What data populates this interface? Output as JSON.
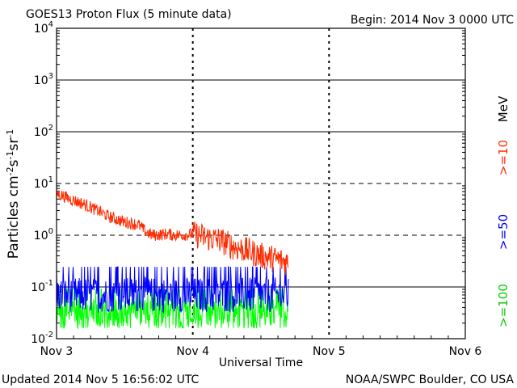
{
  "header": {
    "title": "GOES13 Proton Flux (5 minute data)",
    "begin": "Begin: 2014 Nov 3 0000 UTC"
  },
  "footer": {
    "updated": "Updated 2014 Nov  5 16:56:02 UTC",
    "credit": "NOAA/SWPC Boulder, CO USA"
  },
  "chart_data": {
    "type": "line",
    "title": "GOES13 Proton Flux (5 minute data)",
    "xlabel": "Universal Time",
    "ylabel": "Particles cm-2s-1sr-1",
    "yscale": "log",
    "ylim": [
      0.01,
      10000
    ],
    "y_ticks": [
      {
        "base": "10",
        "exp": "-2"
      },
      {
        "base": "10",
        "exp": "-1"
      },
      {
        "base": "10",
        "exp": "0"
      },
      {
        "base": "10",
        "exp": "1"
      },
      {
        "base": "10",
        "exp": "2"
      },
      {
        "base": "10",
        "exp": "3"
      },
      {
        "base": "10",
        "exp": "4"
      }
    ],
    "x_tick_labels": [
      "Nov 3",
      "Nov 4",
      "Nov 5",
      "Nov 6"
    ],
    "xlim_days": [
      0,
      3
    ],
    "data_end_day": 1.7,
    "threshold_lines": [
      1,
      10
    ],
    "legend_unit": "MeV",
    "series": [
      {
        "name": ">=10",
        "color": "#ff2a00",
        "points": [
          [
            0,
            6.5
          ],
          [
            0.1,
            5.0
          ],
          [
            0.2,
            4.0
          ],
          [
            0.3,
            3.0
          ],
          [
            0.4,
            2.2
          ],
          [
            0.5,
            1.8
          ],
          [
            0.6,
            1.6
          ],
          [
            0.65,
            1.2
          ],
          [
            0.7,
            1.0
          ],
          [
            0.8,
            1.05
          ],
          [
            0.9,
            1.0
          ],
          [
            1.0,
            1.05
          ],
          [
            1.1,
            0.9
          ],
          [
            1.2,
            0.8
          ],
          [
            1.3,
            0.6
          ],
          [
            1.4,
            0.5
          ],
          [
            1.5,
            0.4
          ],
          [
            1.6,
            0.35
          ],
          [
            1.7,
            0.3
          ]
        ]
      },
      {
        "name": ">=50",
        "color": "#0000ff",
        "points": [
          [
            0,
            0.07
          ],
          [
            0.5,
            0.07
          ],
          [
            1.0,
            0.07
          ],
          [
            1.5,
            0.07
          ],
          [
            1.7,
            0.07
          ]
        ]
      },
      {
        "name": ">=100",
        "color": "#00ff00",
        "points": [
          [
            0,
            0.03
          ],
          [
            0.5,
            0.03
          ],
          [
            1.0,
            0.03
          ],
          [
            1.5,
            0.03
          ],
          [
            1.7,
            0.03
          ]
        ]
      }
    ]
  }
}
